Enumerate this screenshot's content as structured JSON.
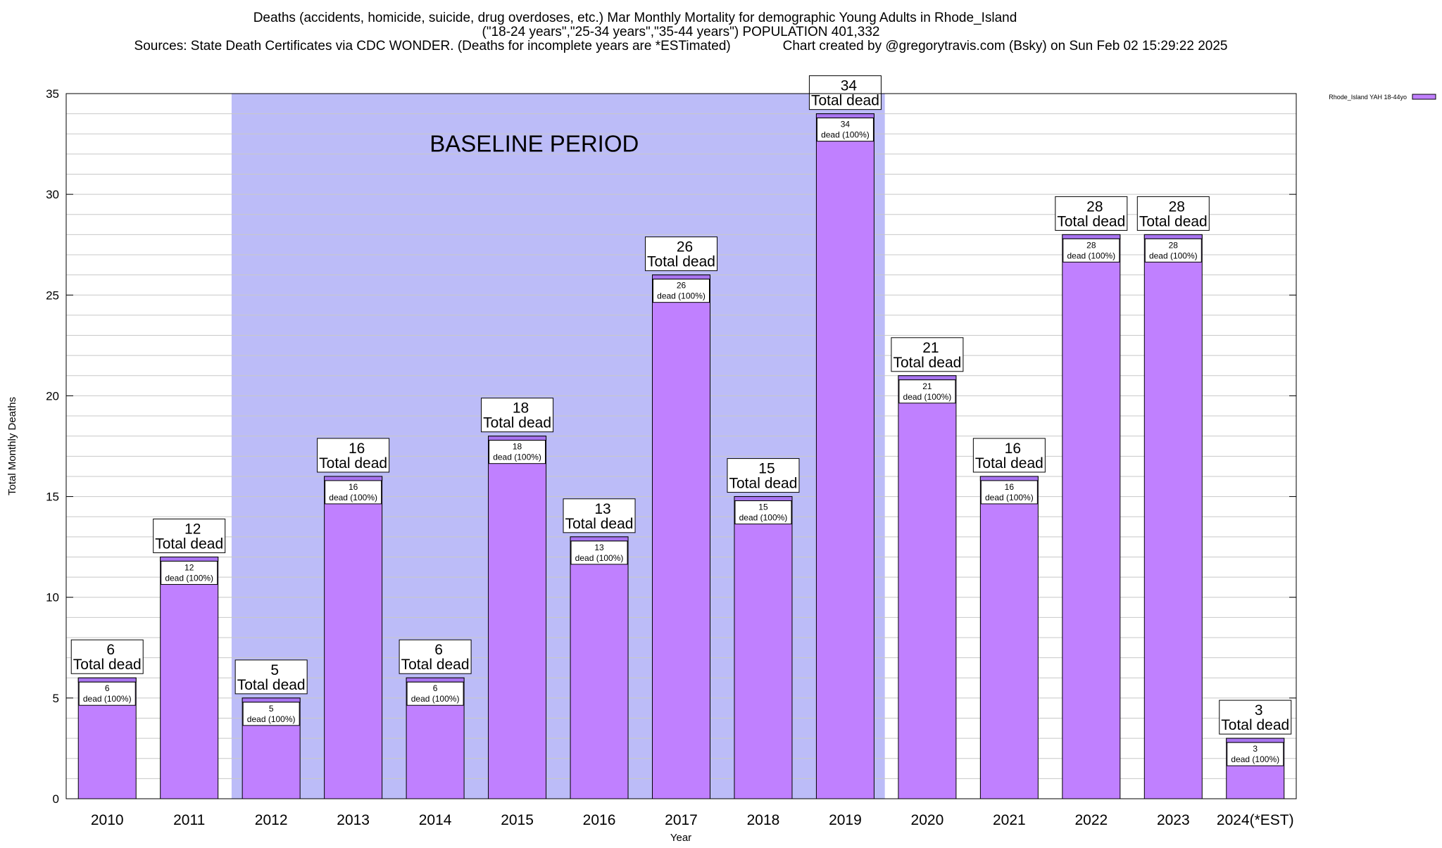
{
  "chart_data": {
    "type": "bar",
    "title_lines": [
      "Deaths (accidents, homicide, suicide, drug overdoses, etc.) Mar Monthly Mortality for demographic Young Adults in Rhode_Island",
      "(\"18-24 years\",\"25-34 years\",\"35-44 years\") POPULATION 401,332",
      "Sources: State Death Certificates via CDC WONDER. (Deaths for incomplete years are *ESTimated)              Chart created by @gregorytravis.com (Bsky) on Sun Feb 02 15:29:22 2025"
    ],
    "xlabel": "Year",
    "ylabel": "Total Monthly Deaths",
    "ylim": [
      0,
      35
    ],
    "ytick_values": [
      0,
      5,
      10,
      15,
      20,
      25,
      30,
      35
    ],
    "ytick_labels": [
      "0",
      "5",
      "10",
      "15",
      "20",
      "25",
      "30",
      "35"
    ],
    "categories": [
      "2010",
      "2011",
      "2012",
      "2013",
      "2014",
      "2015",
      "2016",
      "2017",
      "2018",
      "2019",
      "2020",
      "2021",
      "2022",
      "2023",
      "2024(*EST)"
    ],
    "series": [
      {
        "name": "Rhode_Island YAH 18-44yo",
        "values": [
          6,
          12,
          5,
          16,
          6,
          18,
          13,
          26,
          15,
          34,
          21,
          16,
          28,
          28,
          3
        ]
      }
    ],
    "total_labels": [
      [
        "6",
        "Total dead"
      ],
      [
        "12",
        "Total dead"
      ],
      [
        "5",
        "Total dead"
      ],
      [
        "16",
        "Total dead"
      ],
      [
        "6",
        "Total dead"
      ],
      [
        "18",
        "Total dead"
      ],
      [
        "13",
        "Total dead"
      ],
      [
        "26",
        "Total dead"
      ],
      [
        "15",
        "Total dead"
      ],
      [
        "34",
        "Total dead"
      ],
      [
        "21",
        "Total dead"
      ],
      [
        "16",
        "Total dead"
      ],
      [
        "28",
        "Total dead"
      ],
      [
        "28",
        "Total dead"
      ],
      [
        "3",
        "Total dead"
      ]
    ],
    "inner_labels": [
      [
        "6",
        "dead (100%)"
      ],
      [
        "12",
        "dead (100%)"
      ],
      [
        "5",
        "dead (100%)"
      ],
      [
        "16",
        "dead (100%)"
      ],
      [
        "6",
        "dead (100%)"
      ],
      [
        "18",
        "dead (100%)"
      ],
      [
        "13",
        "dead (100%)"
      ],
      [
        "26",
        "dead (100%)"
      ],
      [
        "15",
        "dead (100%)"
      ],
      [
        "34",
        "dead (100%)"
      ],
      [
        "21",
        "dead (100%)"
      ],
      [
        "16",
        "dead (100%)"
      ],
      [
        "28",
        "dead (100%)"
      ],
      [
        "28",
        "dead (100%)"
      ],
      [
        "3",
        "dead (100%)"
      ]
    ],
    "baseline": {
      "label": "BASELINE PERIOD",
      "from": "2012",
      "to": "2019"
    },
    "legend": {
      "placement": "top-right",
      "label": "Rhode_Island YAH 18-44yo"
    },
    "grid": "horizontal",
    "colors": {
      "bar_fill": "#c080ff",
      "bar_stroke": "#000000",
      "bar_top_band": "#a874f0",
      "baseline_fill": "#bcbcf8",
      "grid": "#c8c8c8",
      "axis": "#000000"
    }
  }
}
